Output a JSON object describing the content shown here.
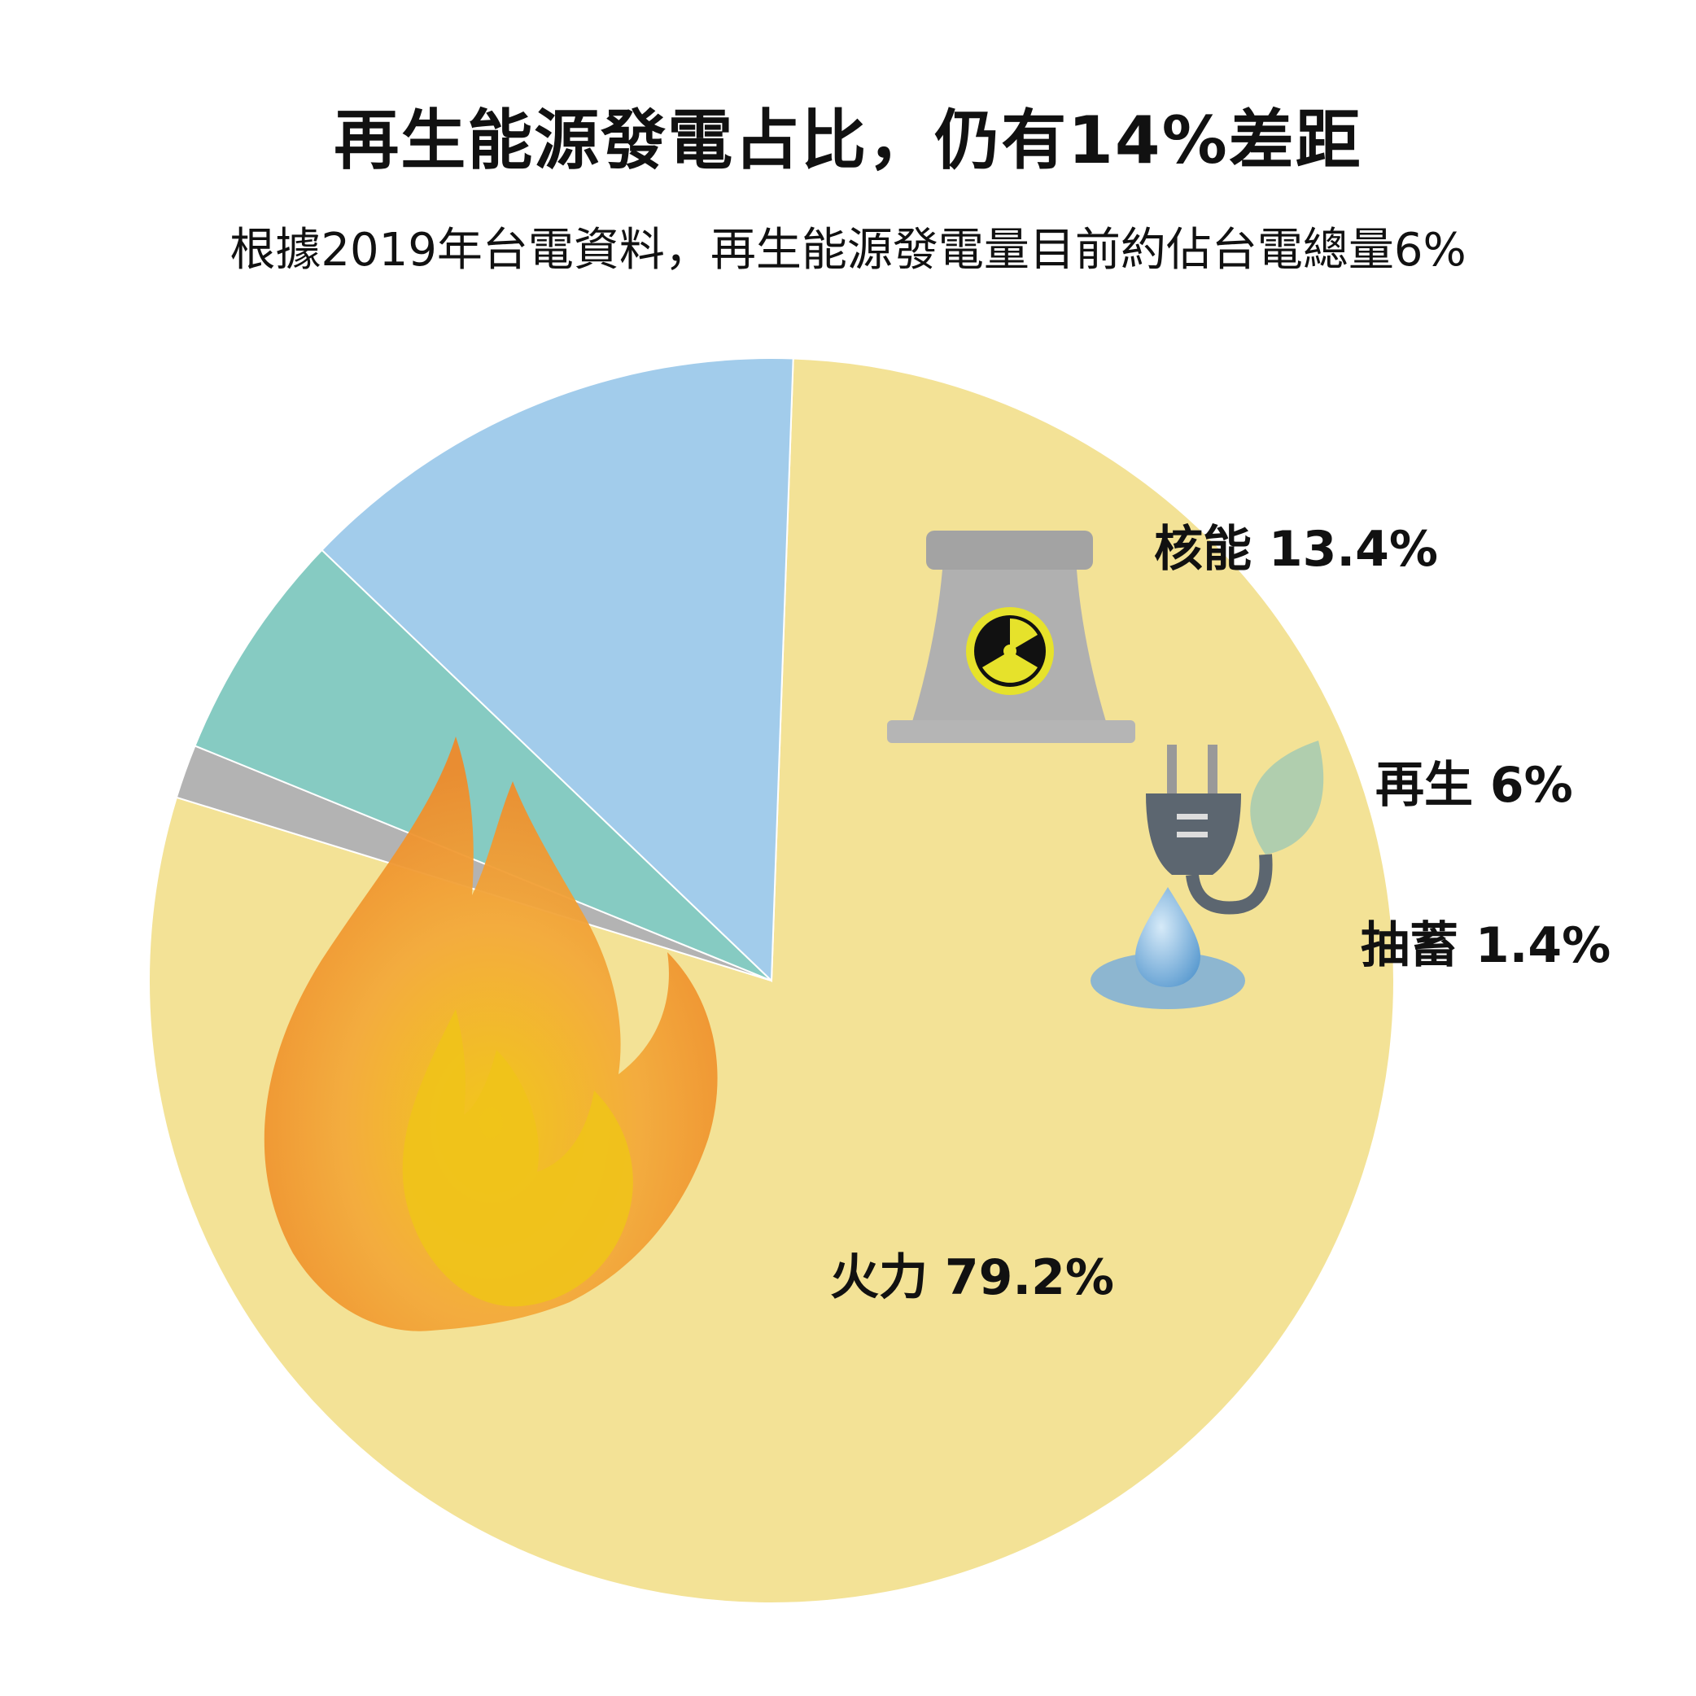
{
  "chart_data": {
    "type": "pie",
    "title": "再生能源發電占比，仍有14%差距",
    "subtitle": "根據2019年台電資料，再生能源發電量目前約佔台電總量6%",
    "slices": [
      {
        "name": "火力",
        "value": 79.2,
        "label": "火力 79.2%",
        "color": "#F3E296",
        "icon": "fire-icon"
      },
      {
        "name": "抽蓄",
        "value": 1.4,
        "label": "抽蓄 1.4%",
        "color": "#B3B3B3",
        "icon": "water-drop-icon"
      },
      {
        "name": "再生",
        "value": 6,
        "label": "再生 6%",
        "color": "#86CBC2",
        "icon": "plug-leaf-icon"
      },
      {
        "name": "核能",
        "value": 13.4,
        "label": "核能 13.4%",
        "color": "#A2CCEB",
        "icon": "nuclear-plant-icon"
      }
    ],
    "legend": "none",
    "grid": false
  }
}
